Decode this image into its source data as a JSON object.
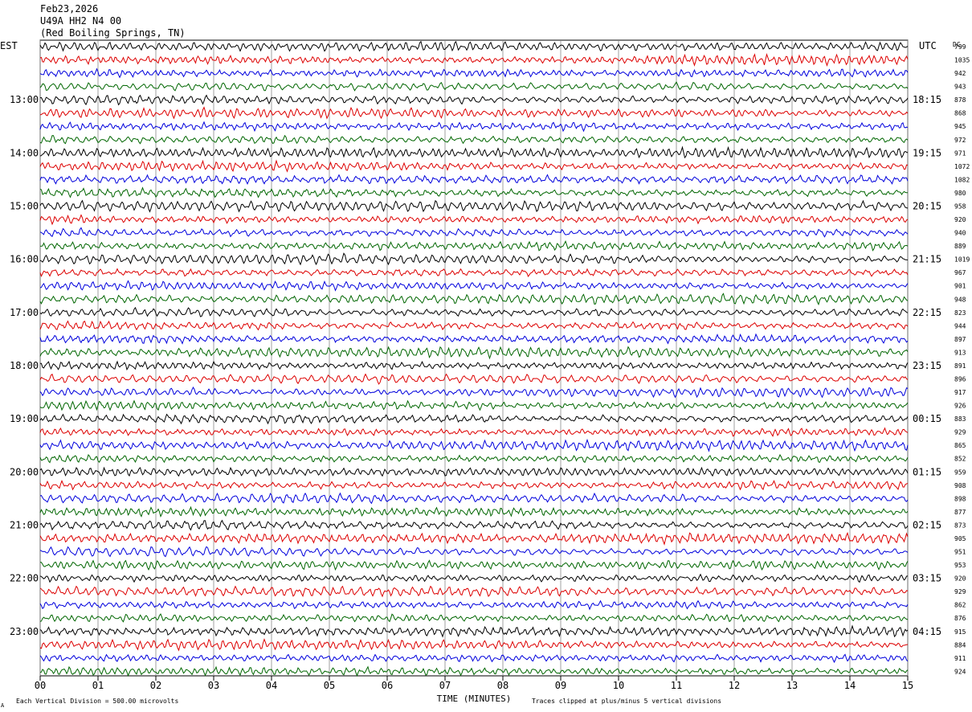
{
  "header": {
    "date": "Feb23,2026",
    "station": "U49A HH2 N4 00",
    "location": "(Red Boiling Springs, TN)"
  },
  "axis_labels": {
    "left_tz": "EST",
    "right_tz": "UTC",
    "dc": "DC",
    "x_title": "TIME (MINUTES)"
  },
  "footer": {
    "scale": "Each Vertical Division =  500.00 microvolts",
    "clip_note": "Traces clipped at plus/minus 5 vertical divisions",
    "corner_mark": "A"
  },
  "chart_data": {
    "type": "line",
    "title": "",
    "xlabel": "TIME (MINUTES)",
    "xlim": [
      0,
      15
    ],
    "x_ticks": [
      "00",
      "01",
      "02",
      "03",
      "04",
      "05",
      "06",
      "07",
      "08",
      "09",
      "10",
      "11",
      "12",
      "13",
      "14",
      "15"
    ],
    "trace_colors": [
      "#000000",
      "#dd0000",
      "#0000dd",
      "#006600"
    ],
    "traces_per_hour": 4,
    "left_hour_labels": [
      "13:00",
      "14:00",
      "15:00",
      "16:00",
      "17:00",
      "18:00",
      "19:00",
      "20:00",
      "21:00",
      "22:00",
      "23:00"
    ],
    "right_hour_labels": [
      "18:15",
      "19:15",
      "20:15",
      "21:15",
      "22:15",
      "23:15",
      "00:15",
      "01:15",
      "02:15",
      "03:15",
      "04:15"
    ],
    "dc_offsets": [
      799,
      1035,
      942,
      943,
      878,
      868,
      945,
      972,
      971,
      1072,
      1082,
      980,
      958,
      920,
      940,
      889,
      1019,
      967,
      901,
      948,
      823,
      944,
      897,
      913,
      891,
      896,
      917,
      926,
      883,
      929,
      865,
      852,
      959,
      908,
      898,
      877,
      873,
      905,
      951,
      953,
      920,
      929,
      862,
      876,
      915,
      884,
      911,
      924
    ]
  }
}
